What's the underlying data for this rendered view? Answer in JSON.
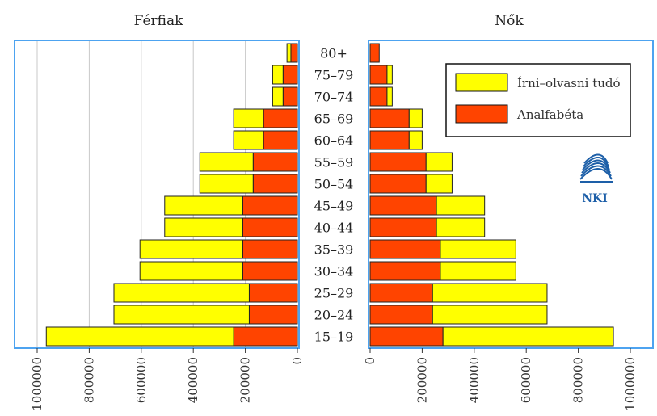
{
  "colors": {
    "literate": "#ffff00",
    "illiterate": "#ff4400",
    "frame": "#4da3f0",
    "grid": "#c8c8c8",
    "logo": "#1d5fa8"
  },
  "logo": {
    "text": "NKI",
    "icon": "nki-logo-icon"
  },
  "chart_data": {
    "type": "bar",
    "orientation": "horizontal",
    "layout": "population-pyramid",
    "categories": [
      "80+",
      "75–79",
      "70–74",
      "65–69",
      "60–64",
      "55–59",
      "50–54",
      "45–49",
      "40–44",
      "35–39",
      "30–34",
      "25–29",
      "20–24",
      "15–19"
    ],
    "legend": {
      "placement": "top-right",
      "entries": [
        "Írni–olvasni tudó",
        "Analfabéta"
      ]
    },
    "panels": [
      {
        "title": "Férfiak",
        "xlim": [
          1000000,
          0
        ],
        "ticks": [
          "1000000",
          "800000",
          "600000",
          "400000",
          "200000",
          "0"
        ],
        "tick_values": [
          1000000,
          800000,
          600000,
          400000,
          200000,
          0
        ],
        "grid": true,
        "series": [
          {
            "name": "Analfabéta",
            "values": [
              25000,
              55000,
              55000,
              130000,
              130000,
              170000,
              170000,
              210000,
              210000,
              210000,
              210000,
              185000,
              185000,
              245000
            ]
          },
          {
            "name": "Írni–olvasni tudó",
            "values": [
              15000,
              40000,
              40000,
              115000,
              115000,
              205000,
              205000,
              300000,
              300000,
              395000,
              395000,
              520000,
              520000,
              720000
            ]
          }
        ]
      },
      {
        "title": "Nők",
        "xlim": [
          0,
          1000000
        ],
        "ticks": [
          "0",
          "200000",
          "400000",
          "600000",
          "800000",
          "1000000"
        ],
        "tick_values": [
          0,
          200000,
          400000,
          600000,
          800000,
          1000000
        ],
        "grid": false,
        "series": [
          {
            "name": "Analfabéta",
            "values": [
              35000,
              65000,
              65000,
              150000,
              150000,
              215000,
              215000,
              255000,
              255000,
              270000,
              270000,
              240000,
              240000,
              280000
            ]
          },
          {
            "name": "Írni–olvasni tudó",
            "values": [
              0,
              20000,
              20000,
              50000,
              50000,
              100000,
              100000,
              185000,
              185000,
              290000,
              290000,
              440000,
              440000,
              655000
            ]
          }
        ]
      }
    ]
  }
}
